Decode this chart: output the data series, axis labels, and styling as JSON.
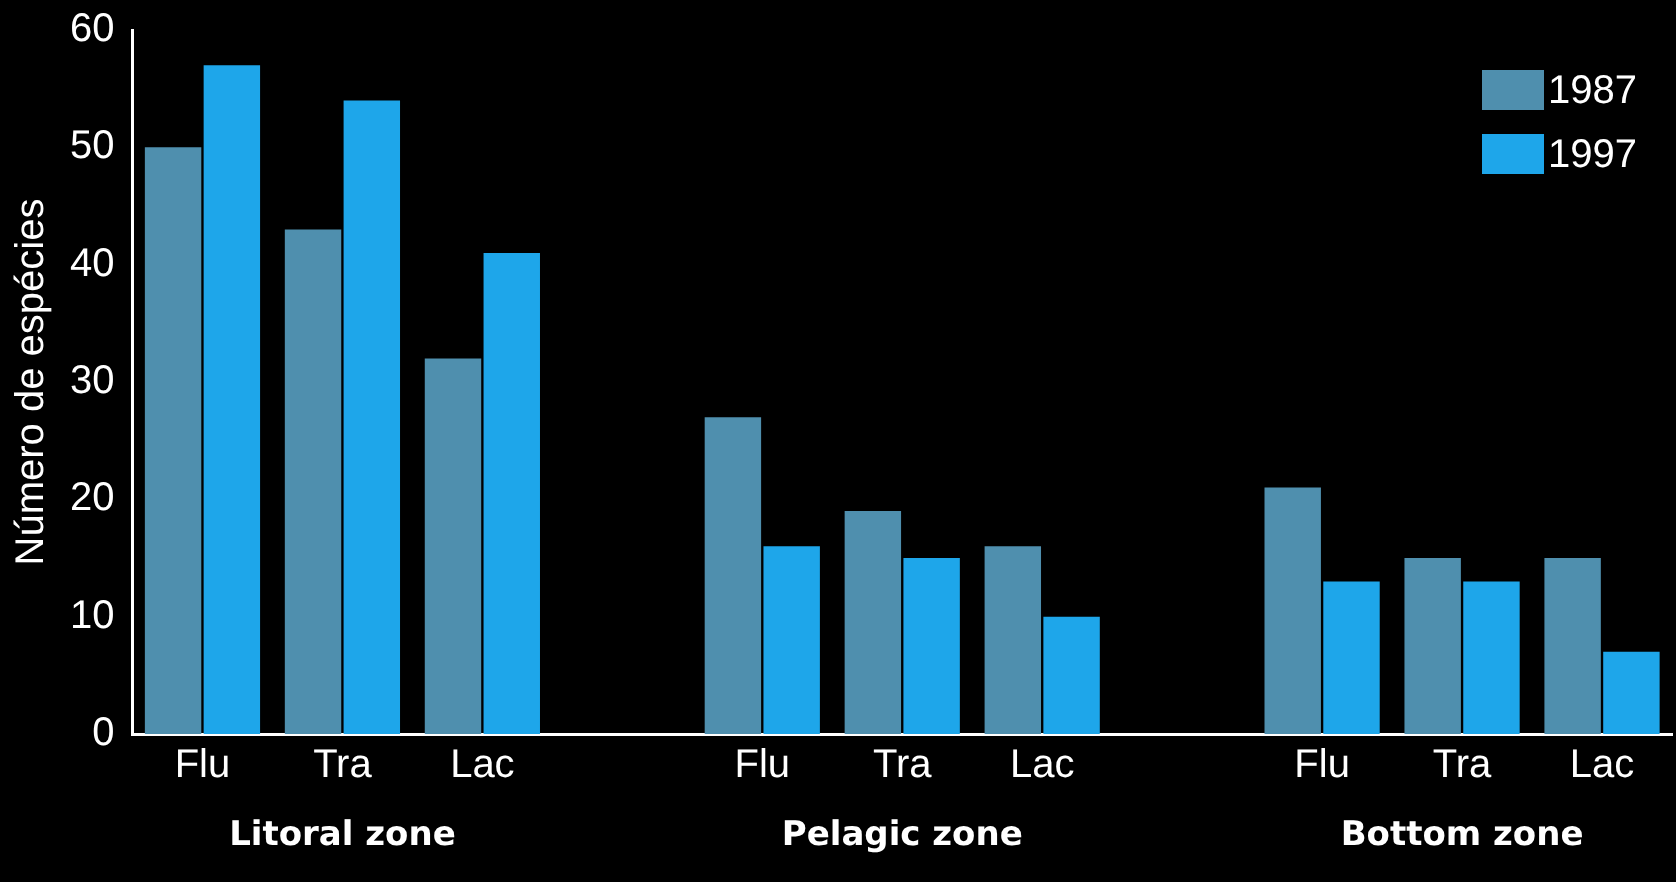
{
  "chart_data": {
    "type": "bar",
    "ylabel": "Número de espécies",
    "categories": [
      "Flu",
      "Tra",
      "Lac",
      null,
      "Flu",
      "Tra",
      "Lac",
      null,
      "Flu",
      "Tra",
      "Lac"
    ],
    "series": [
      {
        "name": "1987",
        "color": "#4f8fae",
        "values": [
          50,
          43,
          32,
          null,
          27,
          19,
          16,
          null,
          21,
          15,
          15
        ]
      },
      {
        "name": "1997",
        "color": "#1ea6ea",
        "values": [
          57,
          54,
          41,
          null,
          16,
          15,
          10,
          null,
          13,
          13,
          7
        ]
      }
    ],
    "ylim": [
      0,
      60
    ],
    "yticks": [
      0,
      10,
      20,
      30,
      40,
      50,
      60
    ],
    "grid": false,
    "legend": "top right",
    "annotations": [
      "Litoral zone",
      "Pelagic zone",
      "Bottom zone"
    ]
  }
}
